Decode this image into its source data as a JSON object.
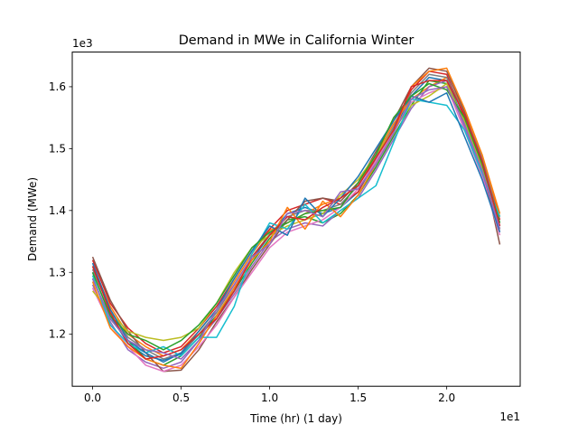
{
  "chart_data": {
    "type": "line",
    "title": "Demand in MWe in California Winter",
    "xlabel": "Time (hr) (1 day)",
    "ylabel": "Demand (MWe)",
    "x_scale_label": "1e1",
    "y_scale_label": "1e3",
    "x_scale": 10,
    "y_scale": 1000,
    "xlim": [
      -1.15,
      24.15
    ],
    "ylim": [
      1116,
      1656
    ],
    "x_ticks": [
      0,
      5,
      10,
      15,
      20
    ],
    "x_tick_labels": [
      "0.0",
      "0.5",
      "1.0",
      "1.5",
      "2.0"
    ],
    "y_ticks": [
      1200,
      1300,
      1400,
      1500,
      1600
    ],
    "y_tick_labels": [
      "1.2",
      "1.3",
      "1.4",
      "1.5",
      "1.6"
    ],
    "grid": false,
    "legend": "none",
    "x": [
      0,
      1,
      2,
      3,
      4,
      5,
      6,
      7,
      8,
      9,
      10,
      11,
      12,
      13,
      14,
      15,
      16,
      17,
      18,
      19,
      20,
      21,
      22,
      23
    ],
    "series": [
      {
        "color": "#1f77b4",
        "values": [
          1300,
          1230,
          1185,
          1165,
          1158,
          1168,
          1200,
          1230,
          1275,
          1320,
          1360,
          1395,
          1405,
          1395,
          1405,
          1430,
          1480,
          1530,
          1585,
          1615,
          1610,
          1545,
          1470,
          1375
        ]
      },
      {
        "color": "#ff7f0e",
        "values": [
          1310,
          1245,
          1200,
          1180,
          1165,
          1175,
          1205,
          1240,
          1285,
          1330,
          1368,
          1380,
          1395,
          1410,
          1420,
          1440,
          1490,
          1540,
          1580,
          1600,
          1615,
          1560,
          1490,
          1390
        ]
      },
      {
        "color": "#2ca02c",
        "values": [
          1290,
          1225,
          1190,
          1160,
          1150,
          1165,
          1195,
          1230,
          1270,
          1315,
          1355,
          1385,
          1390,
          1380,
          1395,
          1425,
          1470,
          1520,
          1570,
          1610,
          1605,
          1540,
          1465,
          1370
        ]
      },
      {
        "color": "#d62728",
        "values": [
          1320,
          1250,
          1210,
          1185,
          1170,
          1180,
          1210,
          1245,
          1290,
          1335,
          1370,
          1400,
          1410,
          1420,
          1410,
          1430,
          1485,
          1535,
          1595,
          1625,
          1620,
          1550,
          1480,
          1385
        ]
      },
      {
        "color": "#9467bd",
        "values": [
          1280,
          1220,
          1175,
          1155,
          1145,
          1155,
          1190,
          1225,
          1265,
          1310,
          1350,
          1370,
          1380,
          1375,
          1400,
          1420,
          1465,
          1515,
          1565,
          1600,
          1610,
          1535,
          1460,
          1365
        ]
      },
      {
        "color": "#8c564b",
        "values": [
          1325,
          1255,
          1205,
          1170,
          1140,
          1142,
          1175,
          1220,
          1260,
          1305,
          1345,
          1385,
          1415,
          1420,
          1415,
          1445,
          1495,
          1545,
          1600,
          1630,
          1625,
          1560,
          1475,
          1345
        ]
      },
      {
        "color": "#e377c2",
        "values": [
          1275,
          1215,
          1180,
          1150,
          1140,
          1150,
          1180,
          1215,
          1260,
          1300,
          1340,
          1365,
          1375,
          1385,
          1405,
          1435,
          1480,
          1530,
          1575,
          1590,
          1600,
          1530,
          1455,
          1360
        ]
      },
      {
        "color": "#7f7f7f",
        "values": [
          1305,
          1240,
          1195,
          1175,
          1160,
          1170,
          1200,
          1235,
          1280,
          1325,
          1362,
          1390,
          1400,
          1400,
          1410,
          1440,
          1485,
          1535,
          1590,
          1620,
          1615,
          1555,
          1485,
          1380
        ]
      },
      {
        "color": "#bcbd22",
        "values": [
          1270,
          1235,
          1205,
          1195,
          1190,
          1195,
          1210,
          1250,
          1300,
          1340,
          1360,
          1375,
          1385,
          1395,
          1425,
          1450,
          1490,
          1530,
          1570,
          1585,
          1605,
          1545,
          1470,
          1370
        ]
      },
      {
        "color": "#17becf",
        "values": [
          1295,
          1215,
          1185,
          1170,
          1180,
          1165,
          1195,
          1195,
          1245,
          1330,
          1380,
          1370,
          1410,
          1380,
          1400,
          1420,
          1440,
          1510,
          1580,
          1575,
          1570,
          1530,
          1460,
          1390
        ]
      },
      {
        "color": "#1f77b4",
        "values": [
          1315,
          1240,
          1190,
          1170,
          1155,
          1170,
          1205,
          1240,
          1290,
          1335,
          1375,
          1360,
          1420,
          1390,
          1420,
          1455,
          1500,
          1545,
          1585,
          1575,
          1590,
          1520,
          1450,
          1365
        ]
      },
      {
        "color": "#ff7f0e",
        "values": [
          1285,
          1210,
          1180,
          1160,
          1150,
          1145,
          1185,
          1230,
          1275,
          1320,
          1350,
          1405,
          1370,
          1415,
          1390,
          1425,
          1475,
          1525,
          1600,
          1625,
          1630,
          1565,
          1490,
          1395
        ]
      },
      {
        "color": "#2ca02c",
        "values": [
          1300,
          1230,
          1200,
          1190,
          1175,
          1190,
          1215,
          1250,
          1295,
          1340,
          1365,
          1380,
          1395,
          1400,
          1405,
          1445,
          1490,
          1550,
          1585,
          1605,
          1595,
          1550,
          1475,
          1380
        ]
      },
      {
        "color": "#d62728",
        "values": [
          1310,
          1235,
          1185,
          1160,
          1165,
          1175,
          1200,
          1225,
          1270,
          1325,
          1360,
          1390,
          1385,
          1405,
          1420,
          1440,
          1485,
          1530,
          1600,
          1610,
          1610,
          1555,
          1480,
          1375
        ]
      },
      {
        "color": "#9467bd",
        "values": [
          1290,
          1225,
          1190,
          1175,
          1170,
          1160,
          1190,
          1240,
          1280,
          1325,
          1345,
          1395,
          1400,
          1390,
          1430,
          1435,
          1475,
          1525,
          1580,
          1595,
          1600,
          1540,
          1465,
          1370
        ]
      }
    ]
  }
}
